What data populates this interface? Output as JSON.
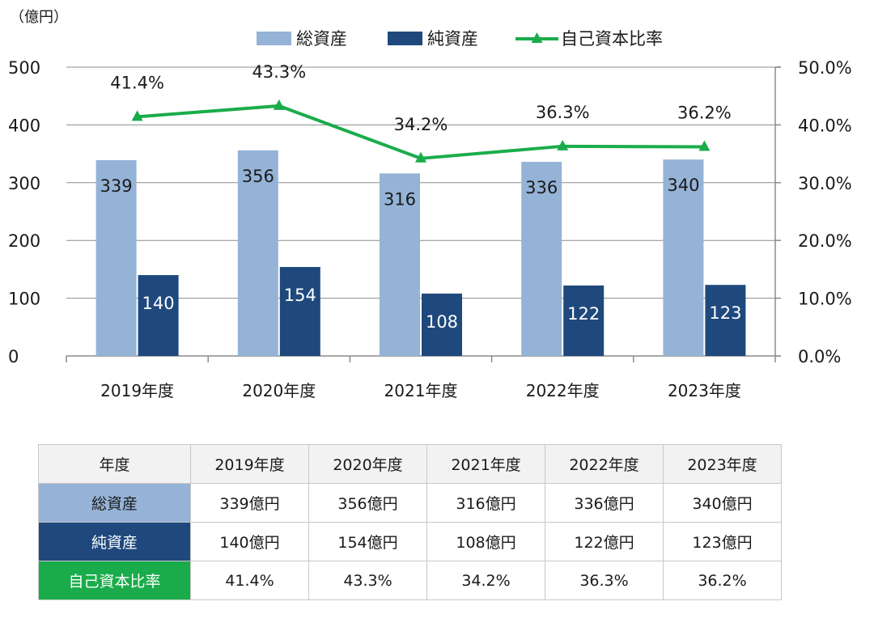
{
  "chart_data": {
    "type": "bar",
    "unit_label": "（億円）",
    "categories": [
      "2019年度",
      "2020年度",
      "2021年度",
      "2022年度",
      "2023年度"
    ],
    "series": [
      {
        "name": "総資産",
        "type": "bar",
        "axis": "left",
        "color": "#95b3d7",
        "values": [
          339,
          356,
          316,
          336,
          340
        ],
        "labels": [
          "339",
          "356",
          "316",
          "336",
          "340"
        ]
      },
      {
        "name": "純資産",
        "type": "bar",
        "axis": "left",
        "color": "#1f497d",
        "values": [
          140,
          154,
          108,
          122,
          123
        ],
        "labels": [
          "140",
          "154",
          "108",
          "122",
          "123"
        ]
      },
      {
        "name": "自己資本比率",
        "type": "line",
        "axis": "right",
        "color": "#1aac4b",
        "marker": "triangle",
        "values": [
          41.4,
          43.3,
          34.2,
          36.3,
          36.2
        ],
        "labels": [
          "41.4%",
          "43.3%",
          "34.2%",
          "36.3%",
          "36.2%"
        ]
      }
    ],
    "y_left": {
      "ylim": [
        0,
        500
      ],
      "ticks": [
        "0",
        "100",
        "200",
        "300",
        "400",
        "500"
      ]
    },
    "y_right": {
      "ylim": [
        0,
        50
      ],
      "ticks": [
        "0.0%",
        "10.0%",
        "20.0%",
        "30.0%",
        "40.0%",
        "50.0%"
      ]
    },
    "grid": true,
    "legend_position": "top"
  },
  "table": {
    "header": [
      "年度",
      "2019年度",
      "2020年度",
      "2021年度",
      "2022年度",
      "2023年度"
    ],
    "rows": [
      {
        "label": "総資産",
        "cells": [
          "339億円",
          "356億円",
          "316億円",
          "336億円",
          "340億円"
        ]
      },
      {
        "label": "純資産",
        "cells": [
          "140億円",
          "154億円",
          "108億円",
          "122億円",
          "123億円"
        ]
      },
      {
        "label": "自己資本比率",
        "cells": [
          "41.4%",
          "43.3%",
          "34.2%",
          "36.3%",
          "36.2%"
        ]
      }
    ]
  }
}
